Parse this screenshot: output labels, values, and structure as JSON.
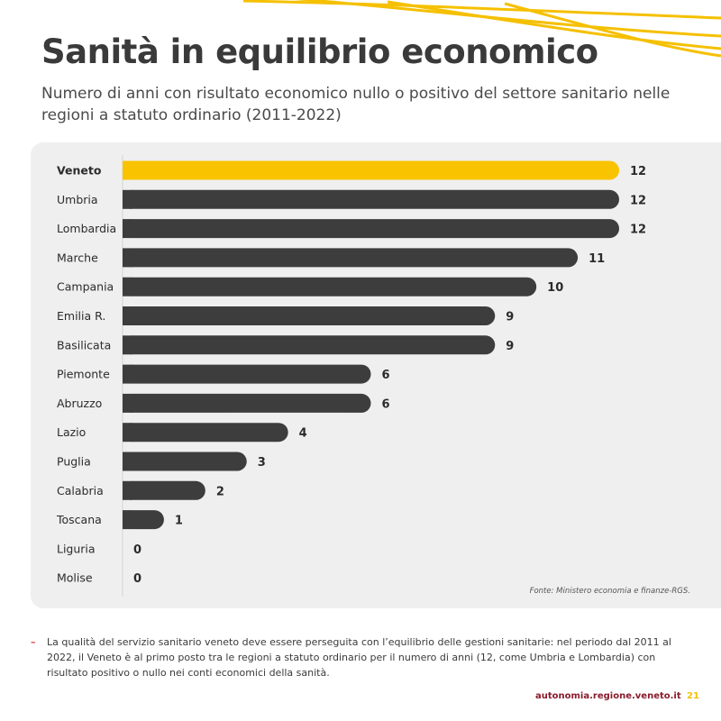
{
  "header": {
    "title": "Sanità in equilibrio economico",
    "subtitle": "Numero di anni con risultato economico nullo o positivo del settore sanitario nelle regioni a statuto ordinario (2011-2022)"
  },
  "chart_data": {
    "type": "bar",
    "orientation": "horizontal",
    "categories": [
      "Veneto",
      "Umbria",
      "Lombardia",
      "Marche",
      "Campania",
      "Emilia R.",
      "Basilicata",
      "Piemonte",
      "Abruzzo",
      "Lazio",
      "Puglia",
      "Calabria",
      "Toscana",
      "Liguria",
      "Molise"
    ],
    "values": [
      12,
      12,
      12,
      11,
      10,
      9,
      9,
      6,
      6,
      4,
      3,
      2,
      1,
      0,
      0
    ],
    "highlight": "Veneto",
    "xlim": [
      0,
      12
    ],
    "grid": false,
    "data_labels": true,
    "colors": {
      "highlight": "#f9c300",
      "default": "#3d3d3d"
    }
  },
  "source": "Fonte: Ministero economia e finanze-RGS.",
  "note": {
    "bullet": "–",
    "text": "La qualità del servizio sanitario veneto deve essere perseguita con l’equilibrio delle gestioni sanitarie: nel periodo dal 2011 al 2022, il Veneto è al primo posto tra le regioni a statuto ordinario per il numero di anni (12, come Umbria e Lombardia) con risultato positivo o nullo nei conti economici della sanità."
  },
  "footer": {
    "site": "autonomia.regione.veneto.it",
    "page": "21"
  },
  "colors": {
    "accent": "#f9c300",
    "bar": "#3d3d3d",
    "panel": "#efefef",
    "site_text": "#8a1b2b"
  }
}
